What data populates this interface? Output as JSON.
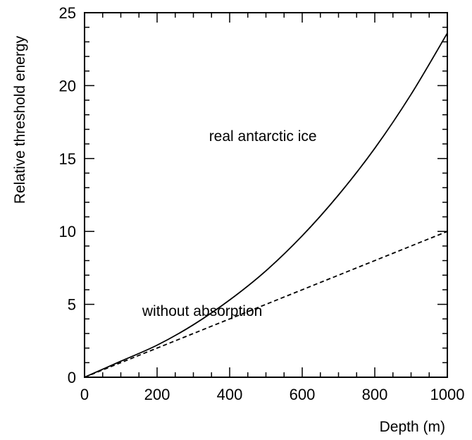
{
  "chart_data": {
    "type": "line",
    "xlabel": "Depth (m)",
    "ylabel": "Relative threshold energy",
    "xlim": [
      0,
      1000
    ],
    "ylim": [
      0,
      25
    ],
    "x_ticks": [
      0,
      200,
      400,
      600,
      800,
      1000
    ],
    "y_ticks": [
      0,
      5,
      10,
      15,
      20,
      25
    ],
    "grid": false,
    "legend": "none",
    "series": [
      {
        "name": "real antarctic ice",
        "style": "solid",
        "color": "#000000",
        "x": [
          0,
          100,
          200,
          300,
          400,
          500,
          600,
          700,
          800,
          900,
          1000
        ],
        "y": [
          0,
          1.1,
          2.2,
          3.6,
          5.3,
          7.3,
          9.7,
          12.5,
          15.7,
          19.4,
          23.6
        ]
      },
      {
        "name": "without absorption",
        "style": "dashed",
        "color": "#000000",
        "x": [
          0,
          100,
          200,
          300,
          400,
          500,
          600,
          700,
          800,
          900,
          1000
        ],
        "y": [
          0,
          1.0,
          2.0,
          3.0,
          4.0,
          5.0,
          6.0,
          7.0,
          8.0,
          9.0,
          10.0
        ]
      }
    ],
    "annotations": [
      {
        "text": "real antarctic ice",
        "x": 640,
        "y": 16.2
      },
      {
        "text": "without absorption",
        "x": 490,
        "y": 4.2
      }
    ]
  }
}
